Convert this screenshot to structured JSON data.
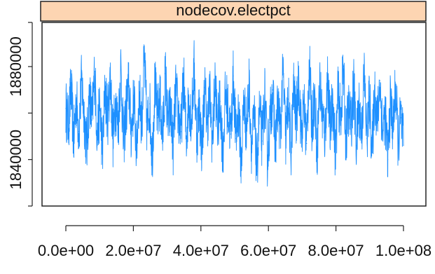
{
  "chart_data": {
    "type": "line",
    "title": "nodecov.electpct",
    "xlabel": "",
    "ylabel": "",
    "xlim": [
      0,
      100000000
    ],
    "ylim": [
      1820000,
      1899000
    ],
    "x_ticks": [
      0,
      20000000,
      40000000,
      60000000,
      80000000,
      100000000
    ],
    "x_tick_labels": [
      "0.0e+00",
      "2.0e+07",
      "4.0e+07",
      "6.0e+07",
      "8.0e+07",
      "1.0e+08"
    ],
    "y_ticks": [
      1840000,
      1880000
    ],
    "y_tick_labels": [
      "1840000",
      "1880000"
    ],
    "grid": false,
    "series": [
      {
        "color": "#1e90ff",
        "x_start": 0,
        "x_end": 100000000,
        "values": [
          1862000,
          1855000,
          1871000,
          1848000,
          1866000,
          1852000,
          1874000,
          1859000,
          1845000,
          1868000,
          1857000,
          1878000,
          1850000,
          1863000,
          1843000,
          1870000,
          1858000,
          1876000,
          1849000,
          1865000,
          1854000,
          1880000,
          1847000,
          1861000,
          1872000,
          1851000,
          1867000,
          1844000,
          1869000,
          1856000,
          1884000,
          1853000,
          1864000,
          1841000,
          1873000,
          1858000,
          1866000,
          1849000,
          1877000,
          1855000,
          1862000,
          1846000,
          1870000,
          1859000,
          1852000,
          1875000,
          1848000,
          1867000,
          1857000,
          1879000,
          1850000,
          1863000,
          1844000,
          1871000,
          1856000,
          1868000,
          1847000,
          1874000,
          1854000,
          1865000,
          1842000,
          1869000,
          1860000,
          1851000,
          1876000,
          1849000,
          1862000,
          1838000,
          1866000,
          1853000,
          1872000,
          1845000,
          1858000,
          1835000,
          1861000,
          1848000,
          1868000,
          1841000,
          1856000,
          1870000,
          1846000,
          1864000,
          1852000,
          1878000,
          1849000,
          1866000,
          1843000,
          1871000,
          1857000,
          1875000,
          1851000,
          1863000,
          1847000,
          1882000,
          1855000,
          1868000,
          1844000,
          1873000,
          1859000,
          1850000,
          1876000,
          1853000,
          1866000,
          1842000,
          1869000,
          1857000,
          1880000,
          1848000,
          1862000,
          1855000,
          1872000,
          1846000,
          1864000,
          1851000,
          1877000,
          1849000,
          1867000,
          1843000,
          1870000,
          1856000,
          1874000,
          1852000,
          1860000,
          1840000,
          1865000,
          1854000,
          1871000,
          1847000,
          1858000,
          1846000
        ]
      }
    ]
  }
}
